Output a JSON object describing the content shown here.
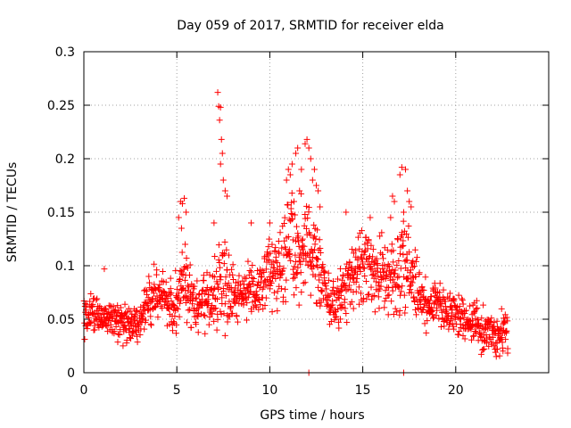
{
  "chart_data": {
    "type": "scatter",
    "title": "Day 059 of 2017, SRMTID for receiver elda",
    "xlabel": "GPS time / hours",
    "ylabel": "SRMTID / TECUs",
    "xlim": [
      0,
      25
    ],
    "ylim": [
      0,
      0.3
    ],
    "xticks": [
      0,
      5,
      10,
      15,
      20
    ],
    "xtick_labels": [
      "0",
      "5",
      "10",
      "15",
      "20"
    ],
    "yticks": [
      0,
      0.05,
      0.1,
      0.15,
      0.2,
      0.25,
      0.3
    ],
    "ytick_labels": [
      "0",
      "0.05",
      "0.1",
      "0.15",
      "0.2",
      "0.25",
      "0.3"
    ],
    "grid": true,
    "marker": "+",
    "marker_color": "#ff0000",
    "series": [
      {
        "name": "SRMTID",
        "trend": [
          [
            0.0,
            0.055
          ],
          [
            0.5,
            0.058
          ],
          [
            1.0,
            0.052
          ],
          [
            1.5,
            0.05
          ],
          [
            2.0,
            0.05
          ],
          [
            2.5,
            0.045
          ],
          [
            3.0,
            0.048
          ],
          [
            3.5,
            0.065
          ],
          [
            4.0,
            0.075
          ],
          [
            4.5,
            0.065
          ],
          [
            5.0,
            0.06
          ],
          [
            5.3,
            0.085
          ],
          [
            5.6,
            0.075
          ],
          [
            6.0,
            0.06
          ],
          [
            6.5,
            0.062
          ],
          [
            7.0,
            0.068
          ],
          [
            7.3,
            0.08
          ],
          [
            7.6,
            0.09
          ],
          [
            8.0,
            0.075
          ],
          [
            8.5,
            0.072
          ],
          [
            9.0,
            0.075
          ],
          [
            9.5,
            0.08
          ],
          [
            10.0,
            0.1
          ],
          [
            10.5,
            0.09
          ],
          [
            11.0,
            0.125
          ],
          [
            11.5,
            0.11
          ],
          [
            12.0,
            0.12
          ],
          [
            12.5,
            0.1
          ],
          [
            13.0,
            0.075
          ],
          [
            13.5,
            0.065
          ],
          [
            14.0,
            0.08
          ],
          [
            14.5,
            0.095
          ],
          [
            15.0,
            0.1
          ],
          [
            15.5,
            0.1
          ],
          [
            16.0,
            0.09
          ],
          [
            16.5,
            0.09
          ],
          [
            17.0,
            0.095
          ],
          [
            17.5,
            0.095
          ],
          [
            18.0,
            0.07
          ],
          [
            18.5,
            0.065
          ],
          [
            19.0,
            0.065
          ],
          [
            19.5,
            0.058
          ],
          [
            20.0,
            0.055
          ],
          [
            20.5,
            0.05
          ],
          [
            21.0,
            0.045
          ],
          [
            21.5,
            0.043
          ],
          [
            22.0,
            0.038
          ],
          [
            22.5,
            0.035
          ],
          [
            22.8,
            0.04
          ]
        ],
        "spread": [
          [
            0.0,
            0.015
          ],
          [
            3.0,
            0.015
          ],
          [
            3.6,
            0.022
          ],
          [
            4.5,
            0.018
          ],
          [
            5.0,
            0.025
          ],
          [
            5.5,
            0.035
          ],
          [
            6.0,
            0.02
          ],
          [
            7.0,
            0.028
          ],
          [
            7.5,
            0.04
          ],
          [
            8.0,
            0.022
          ],
          [
            9.5,
            0.022
          ],
          [
            10.0,
            0.03
          ],
          [
            11.0,
            0.045
          ],
          [
            12.0,
            0.045
          ],
          [
            12.5,
            0.035
          ],
          [
            13.0,
            0.02
          ],
          [
            14.0,
            0.025
          ],
          [
            15.0,
            0.03
          ],
          [
            16.5,
            0.032
          ],
          [
            17.2,
            0.04
          ],
          [
            18.0,
            0.022
          ],
          [
            19.0,
            0.018
          ],
          [
            21.0,
            0.017
          ],
          [
            22.8,
            0.017
          ]
        ],
        "points": [
          [
            7.2,
            0.262
          ],
          [
            7.25,
            0.249
          ],
          [
            7.3,
            0.236
          ],
          [
            7.35,
            0.248
          ],
          [
            7.4,
            0.218
          ],
          [
            7.35,
            0.195
          ],
          [
            7.45,
            0.205
          ],
          [
            7.5,
            0.18
          ],
          [
            7.6,
            0.17
          ],
          [
            7.7,
            0.165
          ],
          [
            12.0,
            0.218
          ],
          [
            11.9,
            0.214
          ],
          [
            12.1,
            0.21
          ],
          [
            11.5,
            0.21
          ],
          [
            11.4,
            0.205
          ],
          [
            11.0,
            0.19
          ],
          [
            11.1,
            0.185
          ],
          [
            10.9,
            0.18
          ],
          [
            12.2,
            0.2
          ],
          [
            12.3,
            0.18
          ],
          [
            12.4,
            0.19
          ],
          [
            12.5,
            0.175
          ],
          [
            12.6,
            0.17
          ],
          [
            12.7,
            0.155
          ],
          [
            11.6,
            0.17
          ],
          [
            11.7,
            0.19
          ],
          [
            11.2,
            0.195
          ],
          [
            11.3,
            0.16
          ],
          [
            17.1,
            0.192
          ],
          [
            17.3,
            0.19
          ],
          [
            17.0,
            0.185
          ],
          [
            16.6,
            0.165
          ],
          [
            16.7,
            0.16
          ],
          [
            17.4,
            0.17
          ],
          [
            17.5,
            0.16
          ],
          [
            17.6,
            0.155
          ],
          [
            16.5,
            0.145
          ],
          [
            17.2,
            0.15
          ],
          [
            5.2,
            0.16
          ],
          [
            5.3,
            0.158
          ],
          [
            5.4,
            0.163
          ],
          [
            5.1,
            0.145
          ],
          [
            5.25,
            0.135
          ],
          [
            5.5,
            0.15
          ],
          [
            5.45,
            0.12
          ],
          [
            14.1,
            0.15
          ],
          [
            15.4,
            0.145
          ],
          [
            10.0,
            0.14
          ],
          [
            9.0,
            0.14
          ],
          [
            7.0,
            0.14
          ],
          [
            1.1,
            0.097
          ],
          [
            12.1,
            0.0
          ],
          [
            17.2,
            0.0
          ]
        ]
      }
    ]
  }
}
